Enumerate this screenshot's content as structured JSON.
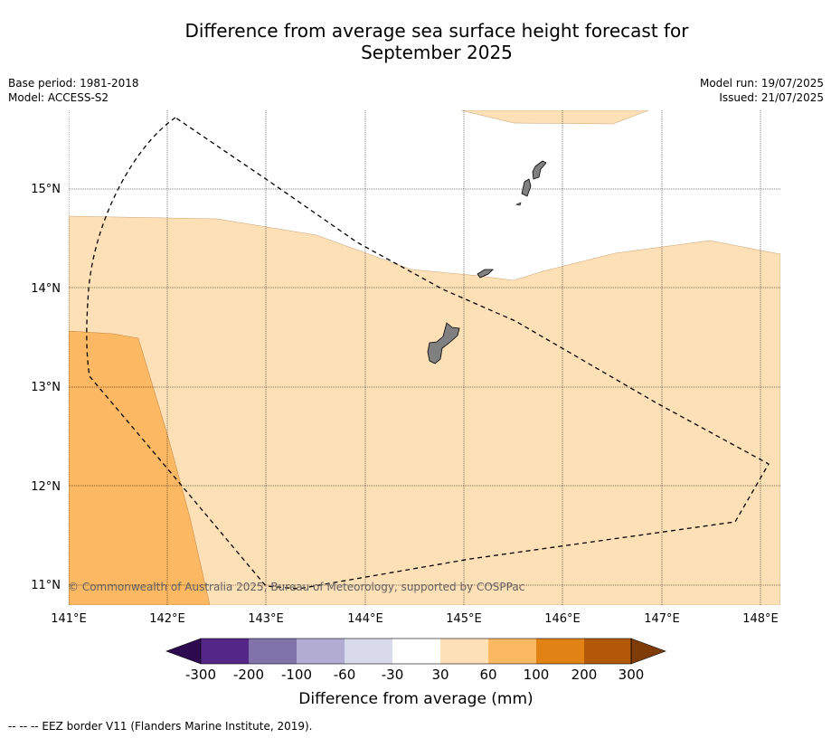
{
  "title_line1": "Difference from average sea surface height forecast for",
  "title_line2": "September 2025",
  "base_period": "Base period: 1981-2018",
  "model": "Model: ACCESS-S2",
  "model_run": "Model run: 19/07/2025",
  "issued": "Issued: 21/07/2025",
  "copyright": "© Commonwealth of Australia 2025, Bureau of Meteorology, supported by COSPPac",
  "lon_labels": [
    "141°E",
    "142°E",
    "143°E",
    "144°E",
    "145°E",
    "146°E",
    "147°E",
    "148°E"
  ],
  "lat_labels": [
    "15°N",
    "14°N",
    "13°N",
    "12°N",
    "11°N"
  ],
  "map_extent": {
    "lon_min": 141.0,
    "lon_max": 148.2,
    "lat_min": 10.8,
    "lat_max": 15.8
  },
  "colorbar": {
    "title": "Difference from average (mm)",
    "tick_labels": [
      "-300",
      "-200",
      "-100",
      "-60",
      "-30",
      "30",
      "60",
      "100",
      "200",
      "300"
    ],
    "colors": [
      "#2d0a4f",
      "#542788",
      "#8073ac",
      "#b2abd2",
      "#d8daeb",
      "#ffffff",
      "#fee0b6",
      "#fdb863",
      "#e08214",
      "#b35806",
      "#7f3b08"
    ]
  },
  "footer": "--  --  -- EEZ border V11 (Flanders Marine Institute, 2019).",
  "colors": {
    "land": "#808080",
    "anomaly_30_60": "#fee0b6",
    "anomaly_60_100": "#fdb863",
    "eez": "#000000"
  }
}
